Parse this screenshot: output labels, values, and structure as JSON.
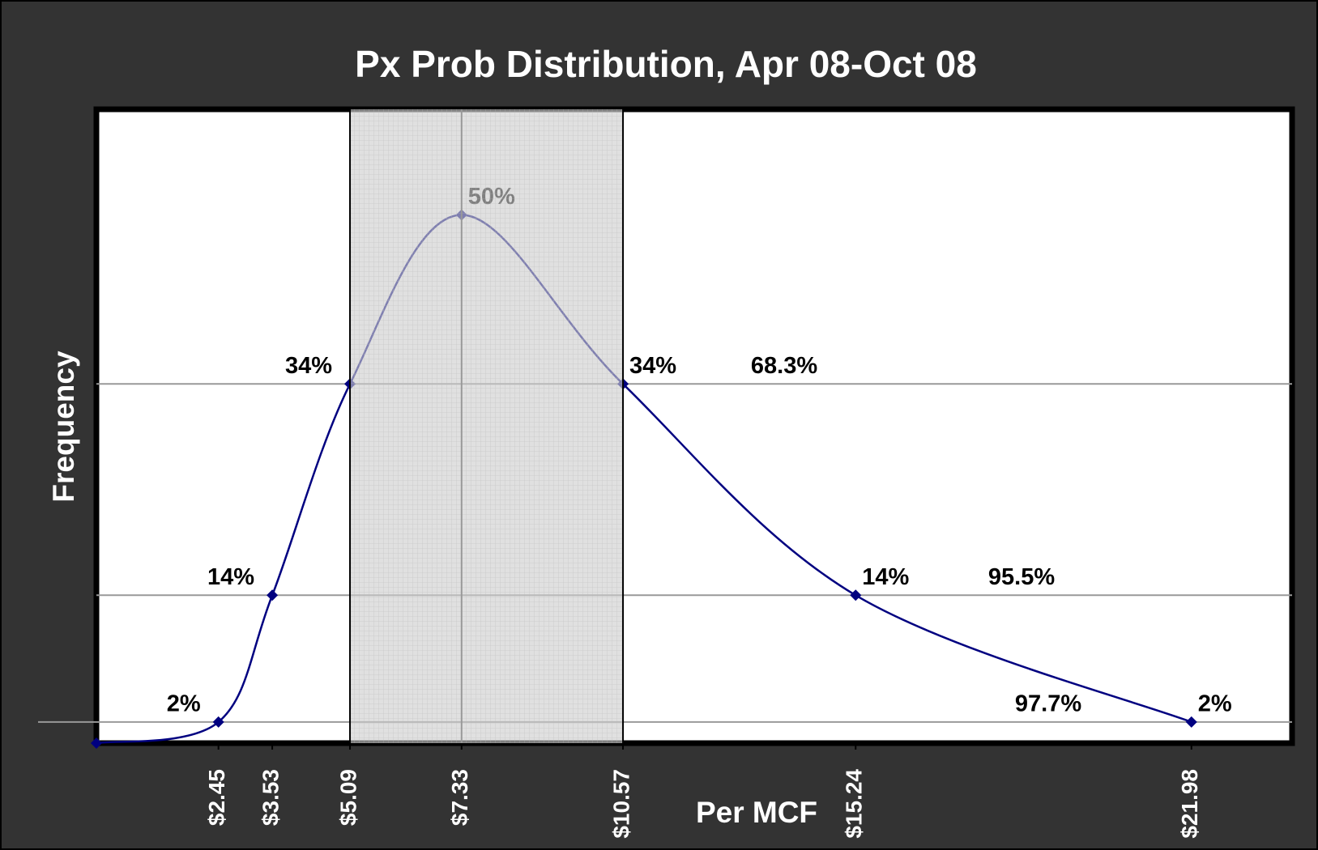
{
  "chart_data": {
    "type": "line",
    "title": "Px Prob Distribution, Apr 08-Oct 08",
    "x_label": "Per MCF",
    "y_label": "Frequency",
    "x": [
      0,
      2.45,
      3.53,
      5.09,
      7.33,
      10.57,
      15.24,
      21.98
    ],
    "xlim": [
      0,
      24
    ],
    "ylim": [
      0,
      60
    ],
    "xticks": [
      {
        "value": 2.45,
        "label": "$2.45"
      },
      {
        "value": 3.53,
        "label": "$3.53"
      },
      {
        "value": 5.09,
        "label": "$5.09"
      },
      {
        "value": 7.33,
        "label": "$7.33"
      },
      {
        "value": 10.57,
        "label": "$10.57"
      },
      {
        "value": 15.24,
        "label": "$15.24"
      },
      {
        "value": 21.98,
        "label": "$21.98"
      }
    ],
    "series": [
      {
        "color": "#000080",
        "values": [
          0,
          2,
          14,
          34,
          50,
          34,
          14,
          2
        ],
        "value_labels": [
          null,
          "2%",
          "14%",
          "34%",
          "50%",
          "34%",
          "14%",
          "2%"
        ]
      }
    ],
    "smooth": true,
    "reference_lines": [
      {
        "value": 34,
        "label": "68.3%"
      },
      {
        "value": 14,
        "label": "95.5%"
      },
      {
        "value": 2,
        "label": "97.7%"
      }
    ],
    "shaded_x_range": [
      5.09,
      10.57
    ],
    "center_line_x": 7.33
  }
}
